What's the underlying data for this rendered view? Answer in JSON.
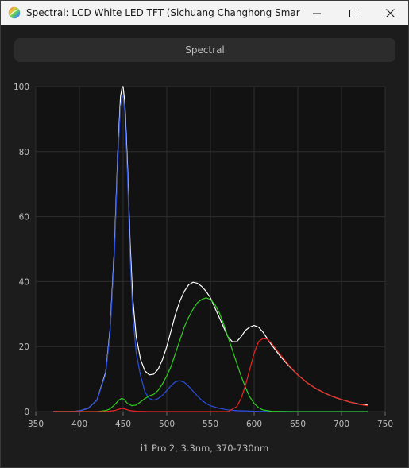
{
  "window": {
    "title": "Spectral: LCD White LED TFT (Sichuang Changhong Smart TV H...",
    "app_icon": "rainbow-sphere-icon",
    "controls": [
      "minimize-icon",
      "maximize-icon",
      "close-icon"
    ]
  },
  "mode_button": {
    "label": "Spectral"
  },
  "caption": "i1 Pro 2, 3.3nm, 370-730nm",
  "colors": {
    "background": "#1c1c1c",
    "plot_background": "#121212",
    "grid": "#2e2e2e",
    "white_series": "#ffffff",
    "red_series": "#e8281e",
    "green_series": "#2fcf1f",
    "blue_series": "#2a4fe0"
  },
  "chart_data": {
    "type": "line",
    "xlim": [
      350,
      750
    ],
    "ylim": [
      0,
      100
    ],
    "x_ticks": [
      "350",
      "400",
      "450",
      "500",
      "550",
      "600",
      "650",
      "700",
      "750"
    ],
    "y_ticks": [
      "0",
      "20",
      "40",
      "60",
      "80",
      "100"
    ],
    "grid": true,
    "series": [
      {
        "key": "white",
        "color": "#ffffff",
        "points": [
          [
            370,
            0
          ],
          [
            380,
            0
          ],
          [
            390,
            0
          ],
          [
            400,
            0.2
          ],
          [
            410,
            1.0
          ],
          [
            420,
            3.5
          ],
          [
            430,
            12
          ],
          [
            435,
            25
          ],
          [
            440,
            50
          ],
          [
            444,
            80
          ],
          [
            447,
            97
          ],
          [
            449,
            100
          ],
          [
            450,
            100
          ],
          [
            452,
            95
          ],
          [
            455,
            76
          ],
          [
            458,
            52
          ],
          [
            461,
            35
          ],
          [
            465,
            23
          ],
          [
            470,
            16
          ],
          [
            475,
            12.5
          ],
          [
            480,
            11.3
          ],
          [
            485,
            11.5
          ],
          [
            490,
            13
          ],
          [
            495,
            16
          ],
          [
            500,
            20
          ],
          [
            505,
            25
          ],
          [
            510,
            30
          ],
          [
            515,
            34
          ],
          [
            520,
            37
          ],
          [
            525,
            39
          ],
          [
            530,
            39.8
          ],
          [
            535,
            39.5
          ],
          [
            540,
            38.5
          ],
          [
            545,
            37
          ],
          [
            550,
            35
          ],
          [
            555,
            32
          ],
          [
            560,
            29
          ],
          [
            565,
            26
          ],
          [
            570,
            23
          ],
          [
            575,
            21.5
          ],
          [
            580,
            21.5
          ],
          [
            585,
            23
          ],
          [
            590,
            25
          ],
          [
            595,
            26
          ],
          [
            600,
            26.5
          ],
          [
            605,
            26
          ],
          [
            610,
            24.5
          ],
          [
            615,
            22.5
          ],
          [
            620,
            20.5
          ],
          [
            630,
            17
          ],
          [
            640,
            14
          ],
          [
            650,
            11.3
          ],
          [
            660,
            9
          ],
          [
            670,
            7.2
          ],
          [
            680,
            5.8
          ],
          [
            690,
            4.6
          ],
          [
            700,
            3.7
          ],
          [
            710,
            2.9
          ],
          [
            720,
            2.3
          ],
          [
            730,
            2.0
          ]
        ]
      },
      {
        "key": "blue",
        "color": "#2a4fe0",
        "points": [
          [
            370,
            0
          ],
          [
            380,
            0
          ],
          [
            390,
            0
          ],
          [
            400,
            0.2
          ],
          [
            410,
            1.0
          ],
          [
            420,
            3.5
          ],
          [
            430,
            11.5
          ],
          [
            435,
            24
          ],
          [
            440,
            48
          ],
          [
            444,
            78
          ],
          [
            447,
            94
          ],
          [
            449,
            97
          ],
          [
            450,
            97
          ],
          [
            452,
            92
          ],
          [
            455,
            73
          ],
          [
            458,
            48
          ],
          [
            461,
            30
          ],
          [
            465,
            18
          ],
          [
            470,
            11
          ],
          [
            475,
            6
          ],
          [
            480,
            4
          ],
          [
            485,
            3.5
          ],
          [
            490,
            4
          ],
          [
            495,
            5
          ],
          [
            500,
            6.5
          ],
          [
            505,
            8
          ],
          [
            510,
            9.2
          ],
          [
            515,
            9.5
          ],
          [
            520,
            9
          ],
          [
            525,
            7.8
          ],
          [
            530,
            6.3
          ],
          [
            535,
            4.8
          ],
          [
            540,
            3.5
          ],
          [
            545,
            2.5
          ],
          [
            550,
            1.8
          ],
          [
            560,
            1.0
          ],
          [
            570,
            0.5
          ],
          [
            580,
            0.3
          ],
          [
            600,
            0.1
          ],
          [
            650,
            0
          ],
          [
            730,
            0
          ]
        ]
      },
      {
        "key": "green",
        "color": "#2fcf1f",
        "points": [
          [
            370,
            0
          ],
          [
            400,
            0
          ],
          [
            420,
            0
          ],
          [
            430,
            0.3
          ],
          [
            435,
            0.8
          ],
          [
            440,
            2
          ],
          [
            445,
            3.5
          ],
          [
            448,
            4
          ],
          [
            451,
            3.8
          ],
          [
            455,
            2.5
          ],
          [
            460,
            1.8
          ],
          [
            465,
            2
          ],
          [
            470,
            3
          ],
          [
            475,
            4
          ],
          [
            480,
            4.8
          ],
          [
            485,
            5.3
          ],
          [
            490,
            6.5
          ],
          [
            495,
            8.5
          ],
          [
            500,
            11
          ],
          [
            505,
            14
          ],
          [
            510,
            18
          ],
          [
            515,
            22
          ],
          [
            520,
            26
          ],
          [
            525,
            29
          ],
          [
            530,
            31.5
          ],
          [
            535,
            33.5
          ],
          [
            540,
            34.5
          ],
          [
            545,
            35
          ],
          [
            550,
            34.5
          ],
          [
            555,
            33
          ],
          [
            560,
            30.5
          ],
          [
            565,
            27
          ],
          [
            570,
            23
          ],
          [
            575,
            19
          ],
          [
            580,
            15
          ],
          [
            585,
            11
          ],
          [
            590,
            7.5
          ],
          [
            595,
            4.5
          ],
          [
            600,
            2.5
          ],
          [
            605,
            1.2
          ],
          [
            610,
            0.5
          ],
          [
            620,
            0.1
          ],
          [
            640,
            0
          ],
          [
            730,
            0
          ]
        ]
      },
      {
        "key": "red",
        "color": "#e8281e",
        "points": [
          [
            370,
            0
          ],
          [
            430,
            0
          ],
          [
            440,
            0.3
          ],
          [
            445,
            0.7
          ],
          [
            449,
            1
          ],
          [
            453,
            0.7
          ],
          [
            458,
            0.3
          ],
          [
            465,
            0.1
          ],
          [
            480,
            0
          ],
          [
            570,
            0
          ],
          [
            580,
            1.5
          ],
          [
            585,
            4
          ],
          [
            590,
            8
          ],
          [
            595,
            13
          ],
          [
            600,
            18
          ],
          [
            605,
            21.5
          ],
          [
            610,
            22.5
          ],
          [
            615,
            22.3
          ],
          [
            620,
            21
          ],
          [
            630,
            17.5
          ],
          [
            640,
            14.2
          ],
          [
            650,
            11.3
          ],
          [
            660,
            9
          ],
          [
            670,
            7.2
          ],
          [
            680,
            5.8
          ],
          [
            690,
            4.6
          ],
          [
            700,
            3.7
          ],
          [
            710,
            2.9
          ],
          [
            720,
            2.2
          ],
          [
            730,
            1.8
          ]
        ]
      }
    ]
  }
}
